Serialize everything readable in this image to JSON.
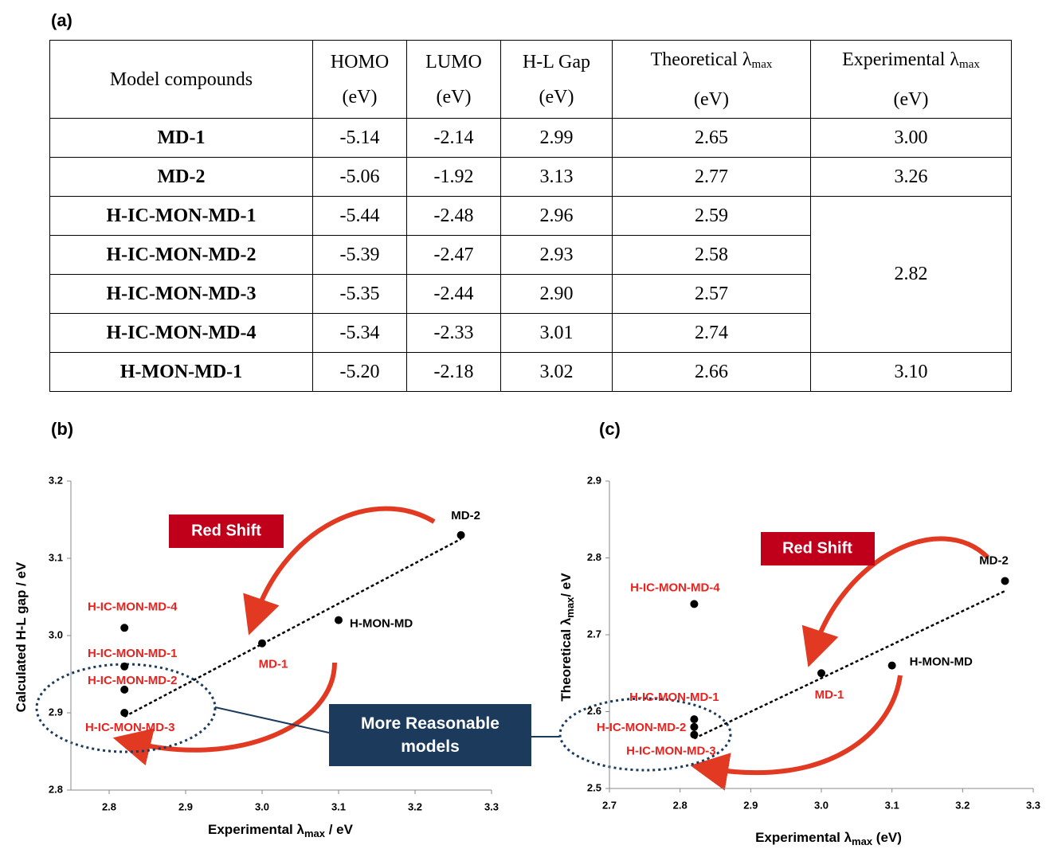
{
  "panel_labels": [
    "(a)",
    "(b)",
    "(c)"
  ],
  "table": {
    "header": [
      {
        "text": "Model compounds"
      },
      {
        "text": "HOMO",
        "unit": "(eV)"
      },
      {
        "text": "LUMO",
        "unit": "(eV)"
      },
      {
        "text": "H-L Gap",
        "unit": "(eV)"
      },
      {
        "text": "Theoretical λ",
        "sub": "max",
        "unit": "(eV)"
      },
      {
        "text": "Experimental λ",
        "sub": "max",
        "unit": "(eV)"
      }
    ],
    "rows": [
      [
        "MD-1",
        "-5.14",
        "-2.14",
        "2.99",
        "2.65",
        "3.00"
      ],
      [
        "MD-2",
        "-5.06",
        "-1.92",
        "3.13",
        "2.77",
        "3.26"
      ],
      [
        "H-IC-MON-MD-1",
        "-5.44",
        "-2.48",
        "2.96",
        "2.59"
      ],
      [
        "H-IC-MON-MD-2",
        "-5.39",
        "-2.47",
        "2.93",
        "2.58"
      ],
      [
        "H-IC-MON-MD-3",
        "-5.35",
        "-2.44",
        "2.90",
        "2.57"
      ],
      [
        "H-IC-MON-MD-4",
        "-5.34",
        "-2.33",
        "3.01",
        "2.74"
      ],
      [
        "H-MON-MD-1",
        "-5.20",
        "-2.18",
        "3.02",
        "2.66",
        "3.10"
      ]
    ],
    "merged_cell": "2.82"
  },
  "callout": "More Reasonable models",
  "chart_data": [
    {
      "type": "scatter",
      "x_label": {
        "text": "Experimental λ",
        "sub": "max",
        "unit": " / eV"
      },
      "y_label": {
        "text": "Calculated H-L gap / eV"
      },
      "annotation": "Red Shift",
      "xlim": [
        2.75,
        3.3
      ],
      "xticks": [
        2.8,
        2.9,
        {
          "value": 3,
          "label": "3.0"
        },
        3.1,
        3.2,
        3.3
      ],
      "ylim": [
        2.8,
        3.2
      ],
      "yticks": [
        2.8,
        2.9,
        {
          "value": 3,
          "label": "3.0"
        },
        3.1,
        3.2
      ],
      "point_color": "#000000",
      "trendline": {
        "x": [
          2.82,
          3.26
        ],
        "y": [
          2.895,
          3.125
        ]
      },
      "points": [
        {
          "label": "MD-1",
          "x": 3.0,
          "y": 2.99,
          "label_color": "#e8231f"
        },
        {
          "label": "MD-2",
          "x": 3.26,
          "y": 3.13,
          "label_color": "#000000"
        },
        {
          "label": "H-IC-MON-MD-1",
          "x": 2.82,
          "y": 2.96,
          "label_color": "#e8231f"
        },
        {
          "label": "H-IC-MON-MD-2",
          "x": 2.82,
          "y": 2.93,
          "label_color": "#e8231f"
        },
        {
          "label": "H-IC-MON-MD-3",
          "x": 2.82,
          "y": 2.9,
          "label_color": "#e8231f"
        },
        {
          "label": "H-IC-MON-MD-4",
          "x": 2.82,
          "y": 3.01,
          "label_color": "#e8231f"
        },
        {
          "label": "H-MON-MD",
          "x": 3.1,
          "y": 3.02,
          "label_color": "#000000"
        }
      ]
    },
    {
      "type": "scatter",
      "x_label": {
        "text": "Experimental λ",
        "sub": "max",
        "unit": " (eV)"
      },
      "y_label": {
        "text": "Theoretical λ",
        "sub": "max",
        "unit": "/ eV"
      },
      "annotation": "Red Shift",
      "xlim": [
        2.7,
        3.3
      ],
      "xticks": [
        2.7,
        2.8,
        2.9,
        {
          "value": 3,
          "label": "3.0"
        },
        3.1,
        3.2,
        3.3
      ],
      "ylim": [
        2.5,
        2.9
      ],
      "yticks": [
        2.5,
        2.6,
        2.7,
        2.8,
        2.9
      ],
      "point_color": "#000000",
      "trendline": {
        "x": [
          2.82,
          3.26
        ],
        "y": [
          2.565,
          2.757
        ]
      },
      "points": [
        {
          "label": "MD-1",
          "x": 3.0,
          "y": 2.65,
          "label_color": "#e8231f"
        },
        {
          "label": "MD-2",
          "x": 3.26,
          "y": 2.77,
          "label_color": "#000000"
        },
        {
          "label": "H-IC-MON-MD-1",
          "x": 2.82,
          "y": 2.59,
          "label_color": "#e8231f"
        },
        {
          "label": "H-IC-MON-MD-2",
          "x": 2.82,
          "y": 2.58,
          "label_color": "#e8231f"
        },
        {
          "label": "H-IC-MON-MD-3",
          "x": 2.82,
          "y": 2.57,
          "label_color": "#e8231f"
        },
        {
          "label": "H-IC-MON-MD-4",
          "x": 2.82,
          "y": 2.74,
          "label_color": "#e8231f"
        },
        {
          "label": "H-MON-MD",
          "x": 3.1,
          "y": 2.66,
          "label_color": "#000000"
        }
      ]
    }
  ]
}
